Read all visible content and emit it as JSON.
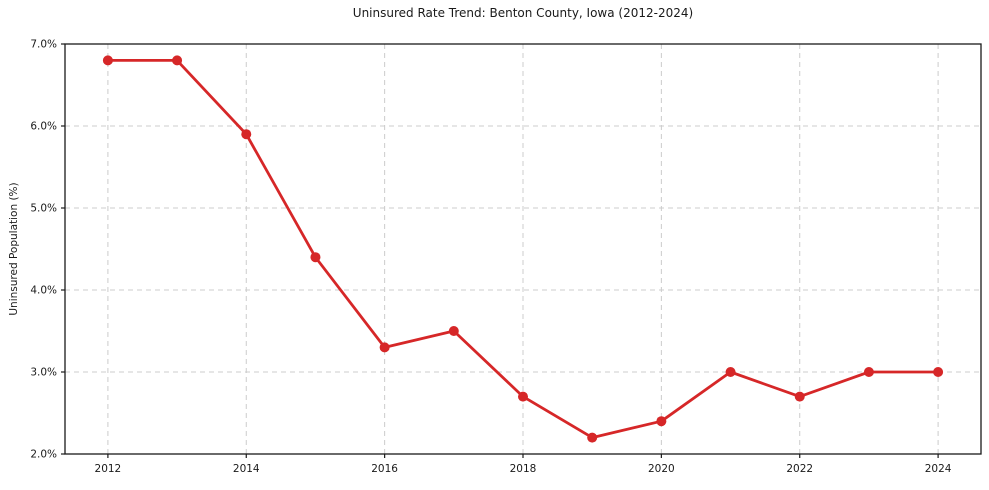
{
  "figure": {
    "background": "#ffffff"
  },
  "chart_data": {
    "type": "line",
    "title": "Uninsured Rate Trend: Benton County, Iowa (2012-2024)",
    "xlabel": "",
    "ylabel": "Uninsured Population (%)",
    "x": [
      2012,
      2013,
      2014,
      2015,
      2016,
      2017,
      2018,
      2019,
      2020,
      2021,
      2022,
      2023,
      2024
    ],
    "series": [
      {
        "name": "Uninsured Population (%)",
        "values": [
          6.8,
          6.8,
          5.9,
          4.4,
          3.3,
          3.5,
          2.7,
          2.2,
          2.4,
          3.0,
          2.7,
          3.0,
          3.0
        ],
        "color": "#d62728",
        "marker": "circle",
        "line_width": 2.8,
        "marker_radius": 5
      }
    ],
    "xlim": [
      2011.38,
      2024.62
    ],
    "ylim": [
      2.0,
      7.0
    ],
    "xticks": [
      2012,
      2014,
      2016,
      2018,
      2020,
      2022,
      2024
    ],
    "xtick_labels": [
      "2012",
      "2014",
      "2016",
      "2018",
      "2020",
      "2022",
      "2024"
    ],
    "yticks": [
      2.0,
      3.0,
      4.0,
      5.0,
      6.0,
      7.0
    ],
    "ytick_labels": [
      "2.0%",
      "3.0%",
      "4.0%",
      "5.0%",
      "6.0%",
      "7.0%"
    ],
    "grid": true,
    "grid_style": "dashed",
    "legend": false,
    "colors": {
      "grid": "#cccccc",
      "spine": "#1a1a1a",
      "tick": "#1a1a1a",
      "text": "#1a1a1a",
      "background": "#ffffff"
    }
  }
}
